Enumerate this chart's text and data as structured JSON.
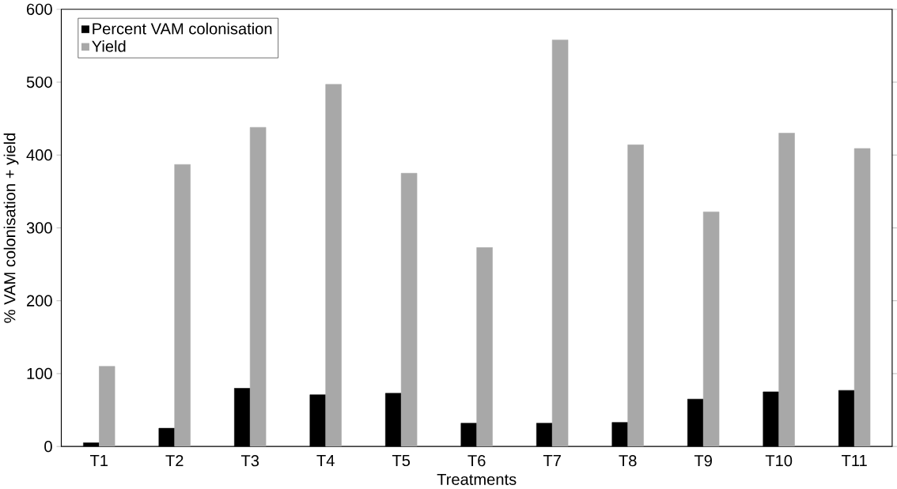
{
  "chart_data": {
    "type": "bar",
    "xlabel": "Treatments",
    "ylabel": "% VAM colonisation + yield",
    "categories": [
      "T1",
      "T2",
      "T3",
      "T4",
      "T5",
      "T6",
      "T7",
      "T8",
      "T9",
      "T10",
      "T11"
    ],
    "series": [
      {
        "name": "Percent VAM colonisation",
        "color": "#000000",
        "values": [
          5,
          25,
          80,
          71,
          73,
          32,
          32,
          33,
          65,
          75,
          77
        ]
      },
      {
        "name": "Yield",
        "color": "#a8a8a8",
        "values": [
          110,
          387,
          438,
          497,
          375,
          273,
          558,
          414,
          322,
          430,
          409
        ]
      }
    ],
    "ylim": [
      0,
      600
    ],
    "yticks": [
      0,
      100,
      200,
      300,
      400,
      500,
      600
    ],
    "legend": "top left",
    "grid": false
  }
}
